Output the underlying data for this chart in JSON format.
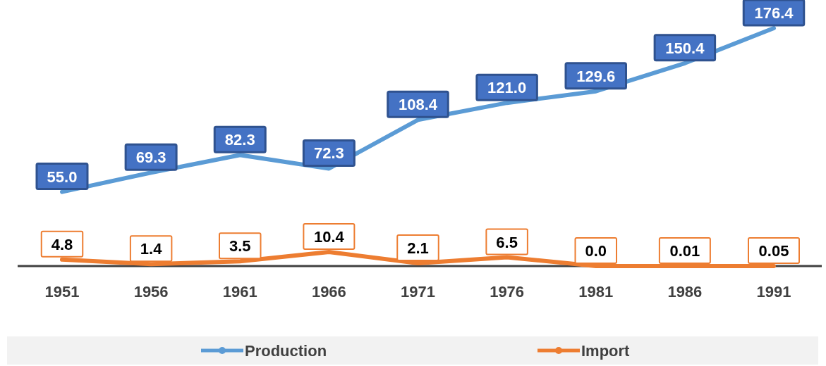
{
  "chart_data": {
    "type": "line",
    "categories": [
      "1951",
      "1956",
      "1961",
      "1966",
      "1971",
      "1976",
      "1981",
      "1986",
      "1991"
    ],
    "legend": "bottom",
    "line_style": "solid",
    "tick_labels": "x",
    "series": [
      {
        "name": "Production",
        "color": "#5b9bd5",
        "values": [
          55.0,
          69.3,
          82.3,
          72.3,
          108.4,
          121.0,
          129.6,
          150.4,
          176.4
        ],
        "value_labels": [
          "55.0",
          "69.3",
          "82.3",
          "72.3",
          "108.4",
          "121.0",
          "129.6",
          "150.4",
          "176.4"
        ]
      },
      {
        "name": "Import",
        "color": "#ed7d31",
        "values": [
          4.8,
          1.4,
          3.5,
          10.4,
          2.1,
          6.5,
          0.0,
          0.01,
          0.05
        ],
        "value_labels": [
          "4.8",
          "1.4",
          "3.5",
          "10.4",
          "2.1",
          "6.5",
          "0.0",
          "0.01",
          "0.05"
        ]
      }
    ]
  }
}
